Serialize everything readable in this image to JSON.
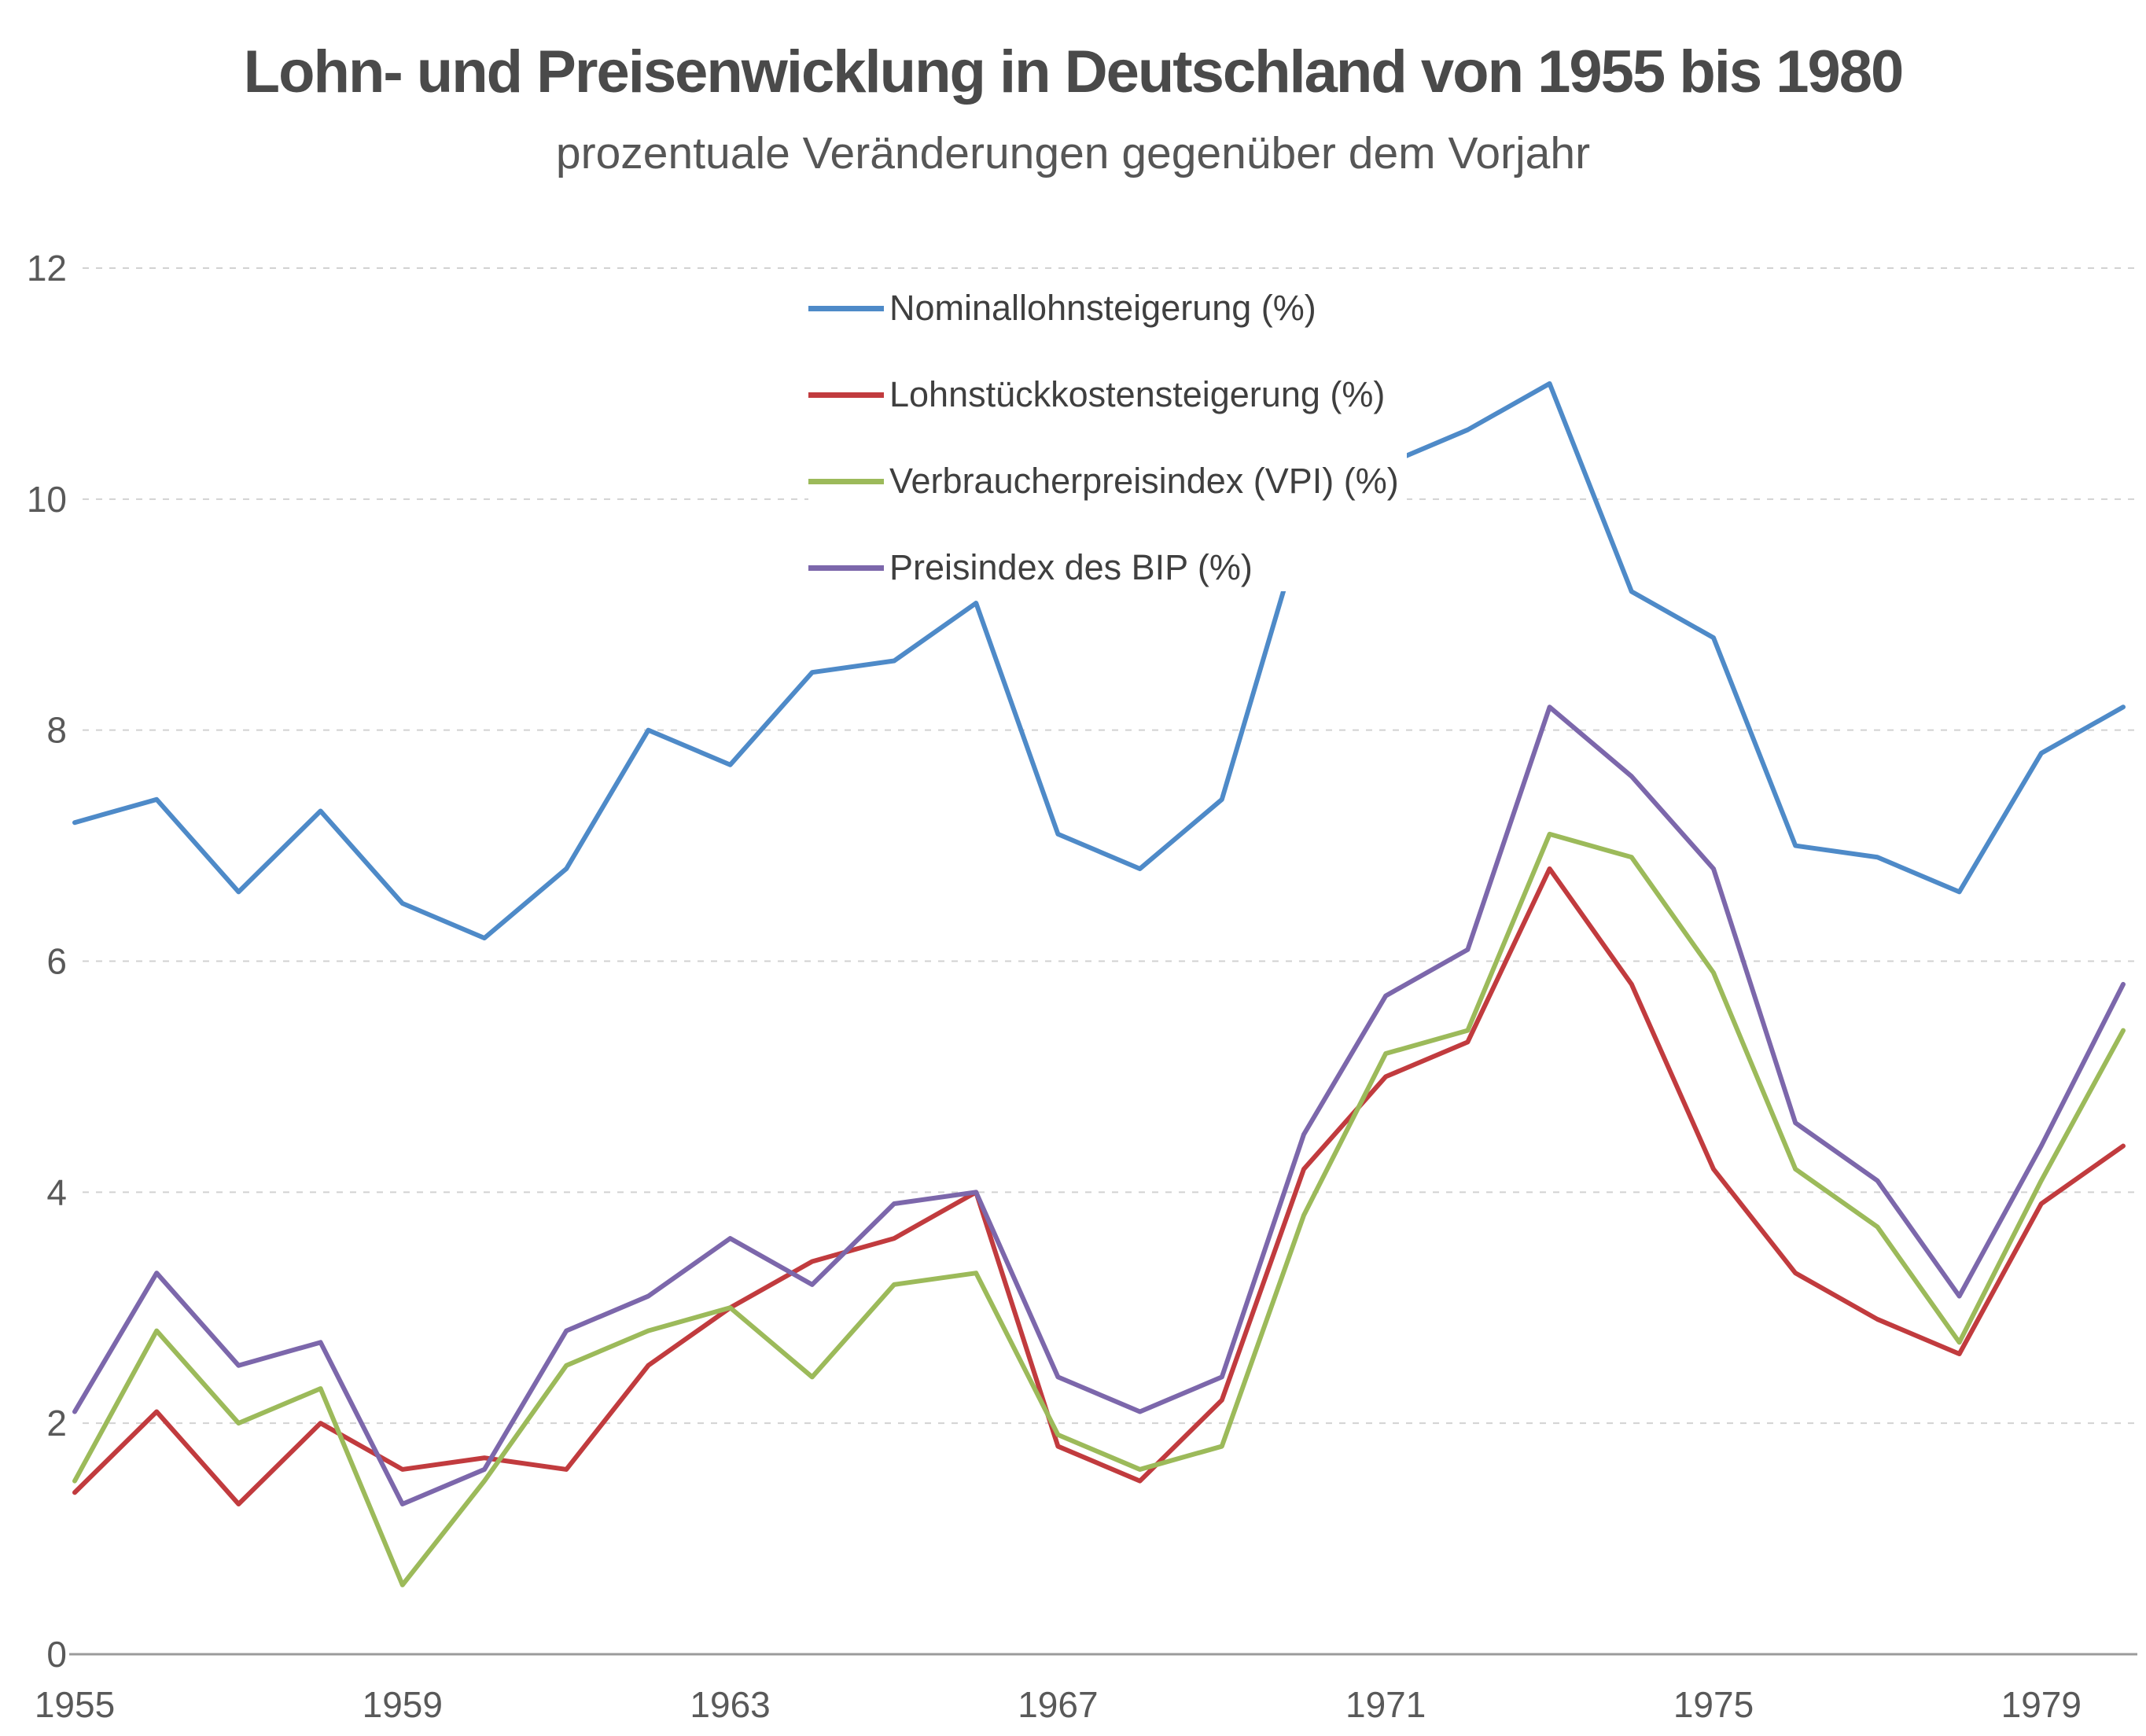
{
  "chart_data": {
    "type": "line",
    "title": "Lohn- und Preisenwicklung in Deutschland von 1955 bis 1980",
    "subtitle": "prozentuale Veränderungen gegenüber dem Vorjahr",
    "x": [
      1955,
      1956,
      1957,
      1958,
      1959,
      1960,
      1961,
      1962,
      1963,
      1964,
      1965,
      1966,
      1967,
      1968,
      1969,
      1970,
      1971,
      1972,
      1973,
      1974,
      1975,
      1976,
      1977,
      1978,
      1979,
      1980
    ],
    "x_tick_labels": [
      1955,
      1959,
      1963,
      1967,
      1971,
      1975,
      1979
    ],
    "ylim": [
      0,
      12
    ],
    "yticks": [
      0,
      2,
      4,
      6,
      8,
      10,
      12
    ],
    "grid": "horizontal-dashed",
    "legend_position": "inside-top-center",
    "series": [
      {
        "name": "Nominallohnsteigerung (%)",
        "color": "#4e8ac8",
        "values": [
          7.2,
          7.4,
          6.6,
          7.3,
          6.5,
          6.2,
          6.8,
          8.0,
          7.7,
          8.5,
          8.6,
          9.1,
          7.1,
          6.8,
          7.4,
          9.8,
          10.3,
          10.6,
          11.0,
          9.2,
          8.8,
          7.0,
          6.9,
          6.6,
          7.8,
          8.2
        ]
      },
      {
        "name": "Lohnstückkostensteigerung (%)",
        "color": "#c13b3e",
        "values": [
          1.4,
          2.1,
          1.3,
          2.0,
          1.6,
          1.7,
          1.6,
          2.5,
          3.0,
          3.4,
          3.6,
          4.0,
          1.8,
          1.5,
          2.2,
          4.2,
          5.0,
          5.3,
          6.8,
          5.8,
          4.2,
          3.3,
          2.9,
          2.6,
          3.9,
          4.4
        ]
      },
      {
        "name": "Verbraucherpreisindex (VPI) (%)",
        "color": "#9cba5a",
        "values": [
          1.5,
          2.8,
          2.0,
          2.3,
          0.6,
          1.5,
          2.5,
          2.8,
          3.0,
          2.4,
          3.2,
          3.3,
          1.9,
          1.6,
          1.8,
          3.8,
          5.2,
          5.4,
          7.1,
          6.9,
          5.9,
          4.2,
          3.7,
          2.7,
          4.1,
          5.4
        ]
      },
      {
        "name": "Preisindex des BIP (%)",
        "color": "#7c67ab",
        "values": [
          2.1,
          3.3,
          2.5,
          2.7,
          1.3,
          1.6,
          2.8,
          3.1,
          3.6,
          3.2,
          3.9,
          4.0,
          2.4,
          2.1,
          2.4,
          4.5,
          5.7,
          6.1,
          8.2,
          7.6,
          6.8,
          4.6,
          4.1,
          3.1,
          4.4,
          5.8
        ]
      }
    ],
    "colors": {
      "title": "#4a4a4a",
      "subtitle": "#565656",
      "tick_labels": "#595959",
      "gridline": "#d2d2d2",
      "axis_line": "#9b9b9b"
    }
  }
}
